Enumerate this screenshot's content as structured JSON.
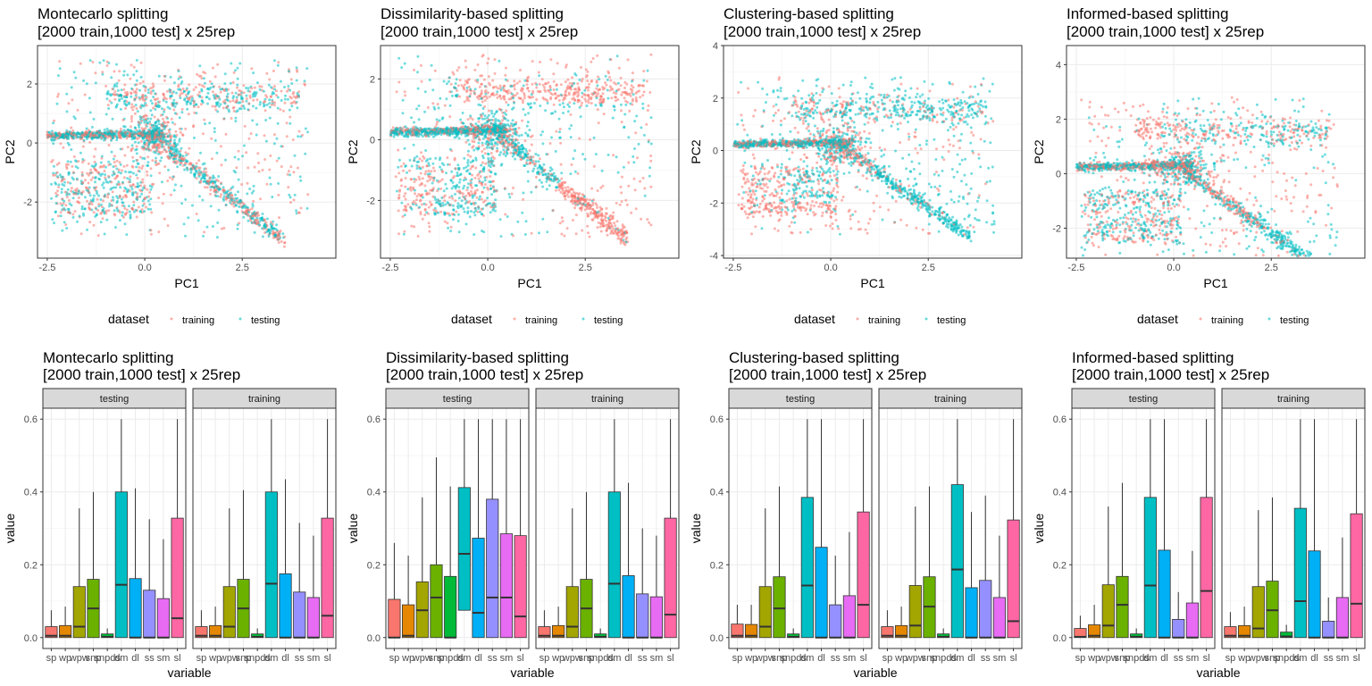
{
  "colors": {
    "training": "#F8766D",
    "testing": "#00BFC4",
    "panel_border": "#333333",
    "grid_major": "#EBEBEB",
    "grid_minor": "#F5F5F5",
    "strip_fill": "#D9D9D9",
    "variables": {
      "sp": "#F8766D",
      "wp": "#E58700",
      "wpw": "#A3A500",
      "snp": "#6BB100",
      "snpds": "#00BA38",
      "dm": "#00BFC4",
      "dl": "#00B0F6",
      "ss": "#9590FF",
      "sm": "#E76BF3",
      "sl": "#FF67A4"
    }
  },
  "legend": {
    "title": "dataset",
    "items": [
      "training",
      "testing"
    ]
  },
  "chart_data": [
    {
      "type": "scatter",
      "title_line1": "Montecarlo splitting",
      "title_line2": "[2000 train,1000 test] x 25rep",
      "xlabel": "PC1",
      "ylabel": "PC2",
      "xlim": [
        -2.75,
        4.9
      ],
      "ylim": [
        -3.9,
        3.3
      ],
      "xticks": [
        -2.5,
        0.0,
        2.5
      ],
      "xtick_labels": [
        "-2.5",
        "0.0",
        "2.5"
      ],
      "yticks": [
        -2,
        0,
        2
      ],
      "ytick_labels": [
        "-2",
        "0",
        "2"
      ],
      "mode": "mixed"
    },
    {
      "type": "scatter",
      "title_line1": "Dissimilarity-based splitting",
      "title_line2": "[2000 train,1000 test] x 25rep",
      "xlabel": "PC1",
      "ylabel": "PC2",
      "xlim": [
        -2.75,
        4.9
      ],
      "ylim": [
        -3.9,
        3.1
      ],
      "xticks": [
        -2.5,
        0.0,
        2.5
      ],
      "xtick_labels": [
        "-2.5",
        "0.0",
        "2.5"
      ],
      "yticks": [
        -2,
        0,
        2
      ],
      "ytick_labels": [
        "-2",
        "0",
        "2"
      ],
      "mode": "dissimilarity"
    },
    {
      "type": "scatter",
      "title_line1": "Clustering-based splitting",
      "title_line2": "[2000 train,1000 test] x 25rep",
      "xlabel": "PC1",
      "ylabel": "PC2",
      "xlim": [
        -2.75,
        4.9
      ],
      "ylim": [
        -4.1,
        4.0
      ],
      "xticks": [
        -2.5,
        0.0,
        2.5
      ],
      "xtick_labels": [
        "-2.5",
        "0.0",
        "2.5"
      ],
      "yticks": [
        -4,
        -2,
        0,
        2,
        4
      ],
      "ytick_labels": [
        "-4",
        "-2",
        "0",
        "2",
        "4"
      ],
      "mode": "clustering"
    },
    {
      "type": "scatter",
      "title_line1": "Informed-based splitting",
      "title_line2": "[2000 train,1000 test] x 25rep",
      "xlabel": "PC1",
      "ylabel": "PC2",
      "xlim": [
        -2.75,
        4.9
      ],
      "ylim": [
        -3.1,
        4.7
      ],
      "xticks": [
        -2.5,
        0.0,
        2.5
      ],
      "xtick_labels": [
        "-2.5",
        "0.0",
        "2.5"
      ],
      "yticks": [
        -2,
        0,
        2,
        4
      ],
      "ytick_labels": [
        "-2",
        "0",
        "2",
        "4"
      ],
      "mode": "informed"
    },
    {
      "type": "box",
      "title_line1": "Montecarlo splitting",
      "title_line2": "[2000 train,1000 test] x 25rep",
      "xlabel": "variable",
      "ylabel": "value",
      "ylim": [
        -0.03,
        0.63
      ],
      "yticks": [
        0.0,
        0.2,
        0.4,
        0.6
      ],
      "ytick_labels": [
        "0.0",
        "0.2",
        "0.4",
        "0.6"
      ],
      "categories": [
        "sp",
        "wp",
        "wpw",
        "snp",
        "snpds",
        "dm",
        "dl",
        "ss",
        "sm",
        "sl"
      ],
      "xtick_labels": [
        "sp",
        "wp",
        "wpw",
        "snp",
        "snpds",
        "dm",
        "dl",
        "ss",
        "sm",
        "sl"
      ],
      "facets": [
        {
          "name": "testing",
          "boxes": [
            [
              0,
              0,
              0.005,
              0.03,
              0.075
            ],
            [
              0,
              0,
              0.005,
              0.033,
              0.085
            ],
            [
              0,
              0,
              0.03,
              0.14,
              0.355
            ],
            [
              0,
              0,
              0.08,
              0.16,
              0.4
            ],
            [
              0,
              0,
              0.002,
              0.01,
              0.025
            ],
            [
              0,
              0,
              0.145,
              0.4,
              0.6
            ],
            [
              0,
              0,
              0,
              0.162,
              0.41
            ],
            [
              0,
              0,
              0,
              0.13,
              0.325
            ],
            [
              0,
              0,
              0,
              0.107,
              0.27
            ],
            [
              0,
              0,
              0.053,
              0.328,
              0.6
            ]
          ]
        },
        {
          "name": "training",
          "boxes": [
            [
              0,
              0,
              0.005,
              0.03,
              0.075
            ],
            [
              0,
              0,
              0.005,
              0.033,
              0.085
            ],
            [
              0,
              0,
              0.03,
              0.14,
              0.355
            ],
            [
              0,
              0,
              0.08,
              0.16,
              0.405
            ],
            [
              0,
              0,
              0.002,
              0.01,
              0.025
            ],
            [
              0,
              0,
              0.148,
              0.4,
              0.6
            ],
            [
              0,
              0,
              0,
              0.175,
              0.435
            ],
            [
              0,
              0,
              0,
              0.125,
              0.315
            ],
            [
              0,
              0,
              0,
              0.11,
              0.28
            ],
            [
              0,
              0,
              0.06,
              0.328,
              0.6
            ]
          ]
        }
      ]
    },
    {
      "type": "box",
      "title_line1": "Dissimilarity-based splitting",
      "title_line2": "[2000 train,1000 test] x 25rep",
      "xlabel": "variable",
      "ylabel": "value",
      "ylim": [
        -0.03,
        0.63
      ],
      "yticks": [
        0.0,
        0.2,
        0.4,
        0.6
      ],
      "ytick_labels": [
        "0.0",
        "0.2",
        "0.4",
        "0.6"
      ],
      "categories": [
        "sp",
        "wp",
        "wpw",
        "snp",
        "snpds",
        "dm",
        "dl",
        "ss",
        "sm",
        "sl"
      ],
      "xtick_labels": [
        "sp",
        "wp",
        "wpw",
        "snp",
        "snpds",
        "dm",
        "dl",
        "ss",
        "sm",
        "sl"
      ],
      "facets": [
        {
          "name": "testing",
          "boxes": [
            [
              0,
              0,
              0,
              0.105,
              0.26
            ],
            [
              0,
              0,
              0.005,
              0.09,
              0.225
            ],
            [
              0,
              0,
              0.075,
              0.153,
              0.385
            ],
            [
              0,
              0,
              0.11,
              0.2,
              0.495
            ],
            [
              0,
              0,
              0,
              0.168,
              0.415
            ],
            [
              0,
              0.075,
              0.23,
              0.412,
              0.6
            ],
            [
              0,
              0,
              0.068,
              0.273,
              0.6
            ],
            [
              0,
              0,
              0.11,
              0.38,
              0.6
            ],
            [
              0,
              0,
              0.11,
              0.285,
              0.6
            ],
            [
              0,
              0,
              0.058,
              0.28,
              0.6
            ]
          ]
        },
        {
          "name": "training",
          "boxes": [
            [
              0,
              0,
              0.005,
              0.03,
              0.075
            ],
            [
              0,
              0,
              0.005,
              0.033,
              0.085
            ],
            [
              0,
              0,
              0.03,
              0.14,
              0.355
            ],
            [
              0,
              0,
              0.08,
              0.16,
              0.4
            ],
            [
              0,
              0,
              0.002,
              0.01,
              0.025
            ],
            [
              0,
              0,
              0.148,
              0.4,
              0.6
            ],
            [
              0,
              0,
              0,
              0.17,
              0.425
            ],
            [
              0,
              0,
              0,
              0.12,
              0.3
            ],
            [
              0,
              0,
              0,
              0.112,
              0.28
            ],
            [
              0,
              0,
              0.063,
              0.328,
              0.6
            ]
          ]
        }
      ]
    },
    {
      "type": "box",
      "title_line1": "Clustering-based splitting",
      "title_line2": "[2000 train,1000 test] x 25rep",
      "xlabel": "variable",
      "ylabel": "value",
      "ylim": [
        -0.03,
        0.63
      ],
      "yticks": [
        0.0,
        0.2,
        0.4,
        0.6
      ],
      "ytick_labels": [
        "0.0",
        "0.2",
        "0.4",
        "0.6"
      ],
      "categories": [
        "sp",
        "wp",
        "wpw",
        "snp",
        "snpds",
        "dm",
        "dl",
        "ss",
        "sm",
        "sl"
      ],
      "xtick_labels": [
        "sp",
        "wp",
        "wpw",
        "snp",
        "snpds",
        "dm",
        "dl",
        "ss",
        "sm",
        "sl"
      ],
      "facets": [
        {
          "name": "testing",
          "boxes": [
            [
              0,
              0,
              0.005,
              0.037,
              0.09
            ],
            [
              0,
              0,
              0.005,
              0.036,
              0.09
            ],
            [
              0,
              0,
              0.03,
              0.14,
              0.355
            ],
            [
              0,
              0,
              0.08,
              0.167,
              0.415
            ],
            [
              0,
              0,
              0.002,
              0.01,
              0.025
            ],
            [
              0,
              0,
              0.143,
              0.385,
              0.6
            ],
            [
              0,
              0,
              0,
              0.248,
              0.6
            ],
            [
              0,
              0,
              0,
              0.09,
              0.225
            ],
            [
              0,
              0,
              0,
              0.115,
              0.29
            ],
            [
              0,
              0,
              0.09,
              0.345,
              0.6
            ]
          ]
        },
        {
          "name": "training",
          "boxes": [
            [
              0,
              0,
              0.005,
              0.03,
              0.075
            ],
            [
              0,
              0,
              0.005,
              0.033,
              0.085
            ],
            [
              0,
              0,
              0.033,
              0.143,
              0.36
            ],
            [
              0,
              0,
              0.085,
              0.167,
              0.415
            ],
            [
              0,
              0,
              0.002,
              0.01,
              0.025
            ],
            [
              0,
              0,
              0.187,
              0.42,
              0.6
            ],
            [
              0,
              0,
              0,
              0.137,
              0.345
            ],
            [
              0,
              0,
              0,
              0.157,
              0.39
            ],
            [
              0,
              0,
              0,
              0.11,
              0.28
            ],
            [
              0,
              0,
              0.045,
              0.323,
              0.6
            ]
          ]
        }
      ]
    },
    {
      "type": "box",
      "title_line1": "Informed-based splitting",
      "title_line2": "[2000 train,1000 test] x 25rep",
      "xlabel": "variable",
      "ylabel": "value",
      "ylim": [
        -0.03,
        0.63
      ],
      "yticks": [
        0.0,
        0.2,
        0.4,
        0.6
      ],
      "ytick_labels": [
        "0.0",
        "0.2",
        "0.4",
        "0.6"
      ],
      "categories": [
        "sp",
        "wp",
        "wpw",
        "snp",
        "snpds",
        "dm",
        "dl",
        "ss",
        "sm",
        "sl"
      ],
      "xtick_labels": [
        "sp",
        "wp",
        "wpw",
        "snp",
        "snpds",
        "dm",
        "dl",
        "ss",
        "sm",
        "sl"
      ],
      "facets": [
        {
          "name": "testing",
          "boxes": [
            [
              0,
              0,
              0.002,
              0.025,
              0.06
            ],
            [
              0,
              0,
              0.005,
              0.035,
              0.09
            ],
            [
              0,
              0,
              0.033,
              0.145,
              0.36
            ],
            [
              0,
              0,
              0.09,
              0.168,
              0.425
            ],
            [
              0,
              0,
              0.002,
              0.01,
              0.025
            ],
            [
              0,
              0,
              0.143,
              0.385,
              0.6
            ],
            [
              0,
              0,
              0,
              0.24,
              0.6
            ],
            [
              0,
              0,
              0,
              0.05,
              0.125
            ],
            [
              0,
              0,
              0,
              0.095,
              0.238
            ],
            [
              0,
              0,
              0.128,
              0.385,
              0.6
            ]
          ]
        },
        {
          "name": "training",
          "boxes": [
            [
              0,
              0,
              0.005,
              0.03,
              0.07
            ],
            [
              0,
              0,
              0.005,
              0.033,
              0.085
            ],
            [
              0,
              0,
              0.025,
              0.14,
              0.35
            ],
            [
              0,
              0,
              0.075,
              0.155,
              0.385
            ],
            [
              0,
              0,
              0.003,
              0.015,
              0.035
            ],
            [
              0,
              0,
              0.1,
              0.355,
              0.6
            ],
            [
              0,
              0,
              0,
              0.238,
              0.6
            ],
            [
              0,
              0,
              0,
              0.045,
              0.11
            ],
            [
              0,
              0,
              0,
              0.11,
              0.275
            ],
            [
              0,
              0,
              0.093,
              0.34,
              0.6
            ]
          ]
        }
      ]
    }
  ]
}
